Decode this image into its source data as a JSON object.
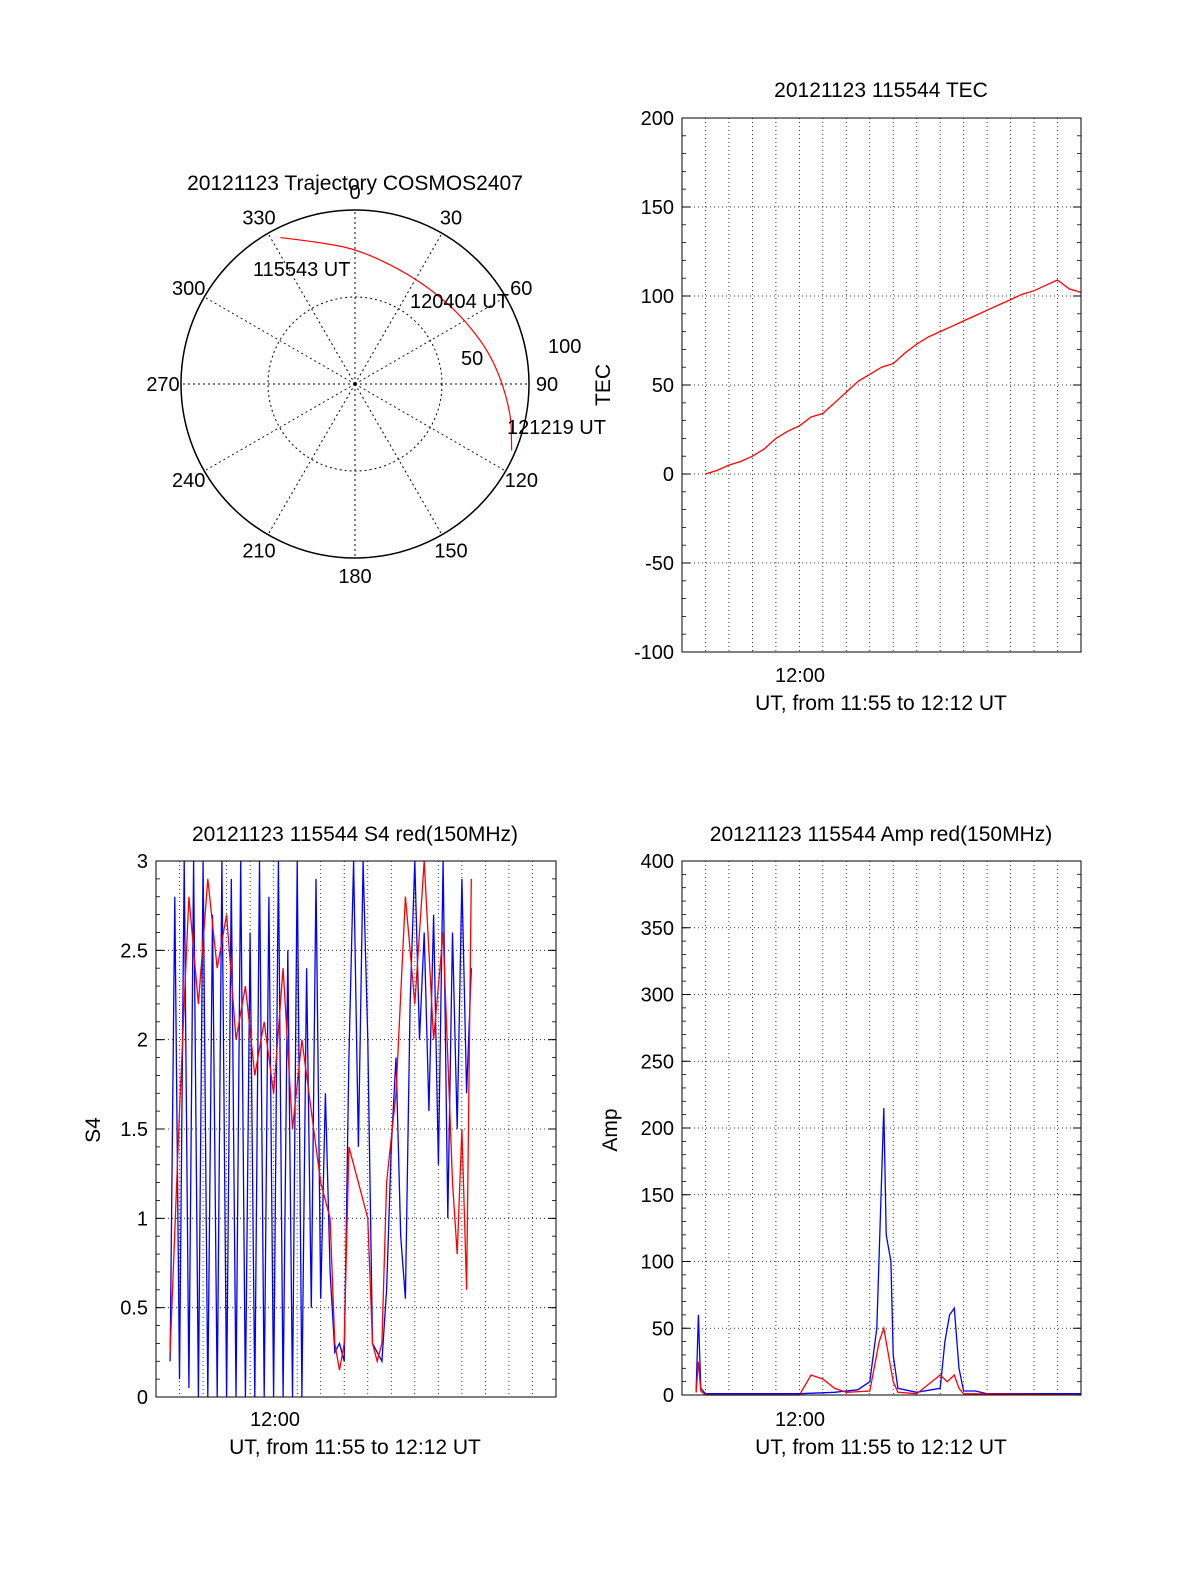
{
  "colors": {
    "red": "#ff0000",
    "blue": "#0000ff",
    "axis": "#000000",
    "grid": "#000000"
  },
  "chart_data": [
    {
      "type": "polar-trajectory",
      "title": "20121123 Trajectory COSMOS2407",
      "angle_labels": [
        "0",
        "30",
        "60",
        "90",
        "120",
        "150",
        "180",
        "210",
        "240",
        "270",
        "300",
        "330"
      ],
      "radial_ticks": [
        "50",
        "100"
      ],
      "point_labels": [
        "115543 UT",
        "120404 UT",
        "121219 UT"
      ],
      "trajectory": {
        "color": "#ff0000",
        "points": [
          {
            "az": 333,
            "el": 5
          },
          {
            "az": 345,
            "el": 14
          },
          {
            "az": 0,
            "el": 20
          },
          {
            "az": 20,
            "el": 26
          },
          {
            "az": 40,
            "el": 27
          },
          {
            "az": 60,
            "el": 24
          },
          {
            "az": 80,
            "el": 17
          },
          {
            "az": 100,
            "el": 8
          },
          {
            "az": 113,
            "el": 2
          }
        ]
      },
      "grid": true
    },
    {
      "type": "line",
      "title": "20121123 115544 TEC",
      "xlabel": "UT, from 11:55 to 12:12 UT",
      "ylabel": "TEC",
      "xlim": [
        0,
        17
      ],
      "x_tick_label": "12:00",
      "ylim": [
        -100,
        200
      ],
      "yticks": [
        "200",
        "150",
        "100",
        "50",
        "0",
        "-50",
        "-100"
      ],
      "grid": true,
      "series": [
        {
          "color": "#ff0000",
          "x": [
            1.0,
            1.5,
            2.0,
            2.5,
            3.0,
            3.5,
            4.0,
            4.5,
            5.0,
            5.5,
            6.0,
            6.5,
            7.0,
            7.5,
            8.0,
            8.5,
            9.0,
            9.5,
            10.0,
            10.5,
            11.0,
            11.5,
            12.0,
            12.5,
            13.0,
            13.5,
            14.0,
            14.5,
            15.0,
            15.5,
            16.0,
            16.5,
            17.0
          ],
          "y": [
            0,
            2,
            5,
            7,
            10,
            14,
            20,
            24,
            27,
            32,
            34,
            40,
            46,
            52,
            56,
            60,
            62,
            68,
            73,
            77,
            80,
            83,
            86,
            89,
            92,
            95,
            98,
            101,
            103,
            106,
            109,
            104,
            102
          ]
        }
      ]
    },
    {
      "type": "line",
      "title": "20121123 115544 S4 red(150MHz)",
      "xlabel": "UT, from 11:55 to 12:12 UT",
      "ylabel": "S4",
      "xlim": [
        0,
        17
      ],
      "x_tick_label": "12:00",
      "ylim": [
        0,
        3
      ],
      "yticks": [
        "3",
        "2.5",
        "2",
        "1.5",
        "1",
        "0.5",
        "0"
      ],
      "grid": true,
      "series": [
        {
          "color": "#0000ff",
          "points": [
            [
              0.6,
              0.2
            ],
            [
              0.8,
              2.8
            ],
            [
              1.0,
              0.1
            ],
            [
              1.2,
              3.0
            ],
            [
              1.4,
              0.05
            ],
            [
              1.6,
              3.0
            ],
            [
              1.8,
              0.0
            ],
            [
              2.0,
              3.0
            ],
            [
              2.2,
              0.0
            ],
            [
              2.4,
              2.7
            ],
            [
              2.6,
              0.0
            ],
            [
              2.8,
              3.0
            ],
            [
              3.0,
              0.0
            ],
            [
              3.2,
              2.9
            ],
            [
              3.4,
              0.0
            ],
            [
              3.6,
              3.0
            ],
            [
              3.8,
              0.0
            ],
            [
              4.0,
              2.6
            ],
            [
              4.2,
              0.0
            ],
            [
              4.4,
              3.0
            ],
            [
              4.6,
              0.0
            ],
            [
              4.8,
              2.8
            ],
            [
              5.0,
              0.0
            ],
            [
              5.2,
              3.0
            ],
            [
              5.4,
              0.0
            ],
            [
              5.6,
              2.5
            ],
            [
              5.8,
              0.0
            ],
            [
              6.0,
              3.0
            ],
            [
              6.2,
              0.0
            ],
            [
              6.4,
              2.4
            ],
            [
              6.6,
              0.5
            ],
            [
              6.8,
              2.9
            ],
            [
              7.0,
              0.55
            ],
            [
              7.2,
              1.7
            ],
            [
              7.4,
              0.7
            ],
            [
              7.6,
              0.25
            ],
            [
              7.8,
              0.3
            ],
            [
              8.0,
              0.2
            ],
            [
              8.2,
              1.9
            ],
            [
              8.4,
              3.0
            ],
            [
              8.6,
              1.4
            ],
            [
              8.8,
              3.0
            ],
            [
              9.0,
              2.0
            ],
            [
              9.2,
              0.3
            ],
            [
              9.4,
              0.25
            ],
            [
              9.6,
              0.2
            ],
            [
              9.8,
              0.6
            ],
            [
              10.0,
              1.4
            ],
            [
              10.2,
              1.9
            ],
            [
              10.4,
              0.9
            ],
            [
              10.6,
              0.55
            ],
            [
              10.8,
              2.2
            ],
            [
              11.0,
              3.0
            ],
            [
              11.2,
              2.0
            ],
            [
              11.4,
              2.6
            ],
            [
              11.6,
              1.6
            ],
            [
              11.8,
              2.7
            ],
            [
              12.0,
              1.3
            ],
            [
              12.2,
              3.0
            ],
            [
              12.4,
              1.0
            ],
            [
              12.6,
              2.6
            ],
            [
              12.8,
              1.5
            ],
            [
              13.0,
              2.9
            ],
            [
              13.2,
              1.7
            ],
            [
              13.4,
              2.4
            ]
          ]
        },
        {
          "color": "#ff0000",
          "points": [
            [
              0.6,
              0.25
            ],
            [
              1.0,
              1.6
            ],
            [
              1.4,
              2.8
            ],
            [
              1.8,
              2.2
            ],
            [
              2.2,
              2.9
            ],
            [
              2.6,
              2.4
            ],
            [
              3.0,
              2.7
            ],
            [
              3.4,
              2.0
            ],
            [
              3.8,
              2.3
            ],
            [
              4.2,
              1.8
            ],
            [
              4.6,
              2.1
            ],
            [
              5.0,
              1.7
            ],
            [
              5.4,
              2.4
            ],
            [
              5.8,
              1.5
            ],
            [
              6.2,
              2.0
            ],
            [
              6.6,
              1.6
            ],
            [
              7.0,
              1.2
            ],
            [
              7.4,
              1.0
            ],
            [
              7.6,
              0.3
            ],
            [
              7.8,
              0.15
            ],
            [
              8.0,
              0.3
            ],
            [
              8.2,
              1.4
            ],
            [
              8.6,
              1.2
            ],
            [
              9.0,
              1.0
            ],
            [
              9.2,
              0.3
            ],
            [
              9.4,
              0.2
            ],
            [
              9.6,
              0.3
            ],
            [
              9.8,
              1.2
            ],
            [
              10.2,
              1.7
            ],
            [
              10.6,
              2.8
            ],
            [
              11.0,
              2.2
            ],
            [
              11.4,
              3.0
            ],
            [
              11.8,
              2.0
            ],
            [
              12.2,
              2.6
            ],
            [
              12.6,
              1.2
            ],
            [
              12.8,
              0.8
            ],
            [
              13.0,
              1.5
            ],
            [
              13.2,
              0.6
            ],
            [
              13.4,
              2.9
            ]
          ]
        }
      ]
    },
    {
      "type": "line",
      "title": "20121123 115544 Amp red(150MHz)",
      "xlabel": "UT, from 11:55 to 12:12 UT",
      "ylabel": "Amp",
      "xlim": [
        0,
        17
      ],
      "x_tick_label": "12:00",
      "ylim": [
        0,
        400
      ],
      "yticks": [
        "400",
        "350",
        "300",
        "250",
        "200",
        "150",
        "100",
        "50",
        "0"
      ],
      "grid": true,
      "series": [
        {
          "color": "#0000ff",
          "points": [
            [
              0.6,
              2
            ],
            [
              0.7,
              60
            ],
            [
              0.8,
              5
            ],
            [
              1.0,
              1
            ],
            [
              3.0,
              1
            ],
            [
              5.0,
              1
            ],
            [
              6.5,
              2
            ],
            [
              7.0,
              3
            ],
            [
              7.5,
              4
            ],
            [
              8.0,
              10
            ],
            [
              8.3,
              50
            ],
            [
              8.5,
              160
            ],
            [
              8.6,
              215
            ],
            [
              8.7,
              120
            ],
            [
              8.9,
              100
            ],
            [
              9.0,
              30
            ],
            [
              9.2,
              5
            ],
            [
              10.0,
              2
            ],
            [
              11.0,
              5
            ],
            [
              11.2,
              40
            ],
            [
              11.4,
              60
            ],
            [
              11.6,
              65
            ],
            [
              11.8,
              20
            ],
            [
              12.0,
              3
            ],
            [
              12.5,
              3
            ],
            [
              13.0,
              1
            ],
            [
              15.0,
              1
            ],
            [
              17.0,
              1
            ]
          ]
        },
        {
          "color": "#ff0000",
          "points": [
            [
              0.6,
              2
            ],
            [
              0.7,
              25
            ],
            [
              0.8,
              3
            ],
            [
              1.0,
              0
            ],
            [
              5.0,
              0
            ],
            [
              5.5,
              15
            ],
            [
              6.0,
              12
            ],
            [
              6.5,
              5
            ],
            [
              7.0,
              2
            ],
            [
              8.0,
              3
            ],
            [
              8.4,
              40
            ],
            [
              8.6,
              50
            ],
            [
              8.8,
              30
            ],
            [
              9.0,
              10
            ],
            [
              9.2,
              2
            ],
            [
              10.0,
              1
            ],
            [
              11.0,
              15
            ],
            [
              11.3,
              10
            ],
            [
              11.6,
              15
            ],
            [
              11.8,
              5
            ],
            [
              12.0,
              1
            ],
            [
              17.0,
              0
            ]
          ]
        }
      ]
    }
  ]
}
